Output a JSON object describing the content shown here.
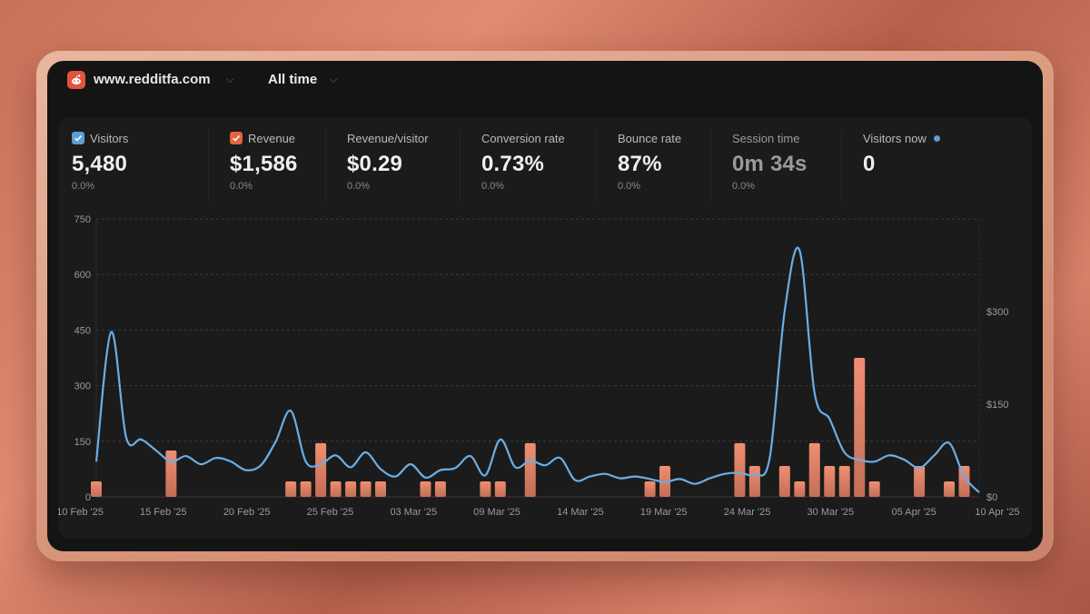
{
  "header": {
    "site_name": "www.redditfa.com",
    "period": "All time"
  },
  "metrics": [
    {
      "label": "Visitors",
      "value": "5,480",
      "change": "0.0%",
      "checkbox": "blue"
    },
    {
      "label": "Revenue",
      "value": "$1,586",
      "change": "0.0%",
      "checkbox": "orange"
    },
    {
      "label": "Revenue/visitor",
      "value": "$0.29",
      "change": "0.0%"
    },
    {
      "label": "Conversion rate",
      "value": "0.73%",
      "change": "0.0%"
    },
    {
      "label": "Bounce rate",
      "value": "87%",
      "change": "0.0%"
    },
    {
      "label": "Session time",
      "value": "0m 34s",
      "change": "0.0%"
    },
    {
      "label": "Visitors now",
      "value": "0",
      "change": ""
    }
  ],
  "colors": {
    "visitors_line": "#6aaee6",
    "revenue_bar": "#e07e62",
    "revenue_bar_top": "#f08f72"
  },
  "chart_data": {
    "type": "bar",
    "x_ticks": [
      "10 Feb '25",
      "15 Feb '25",
      "20 Feb '25",
      "25 Feb '25",
      "03 Mar '25",
      "09 Mar '25",
      "14 Mar '25",
      "19 Mar '25",
      "24 Mar '25",
      "30 Mar '25",
      "05 Apr '25",
      "10 Apr '25"
    ],
    "y_left": {
      "ticks": [
        0,
        150,
        300,
        450,
        600,
        750
      ],
      "range": [
        0,
        750
      ]
    },
    "y_right": {
      "ticks": [
        "$0",
        "$150",
        "$300"
      ],
      "range": [
        0,
        450
      ]
    },
    "series": [
      {
        "type": "line",
        "axis": "left",
        "points": [
          {
            "x": "2025-02-10",
            "y": 95
          },
          {
            "x": "2025-02-11",
            "y": 445
          },
          {
            "x": "2025-02-12",
            "y": 160
          },
          {
            "x": "2025-02-13",
            "y": 155
          },
          {
            "x": "2025-02-14",
            "y": 125
          },
          {
            "x": "2025-02-15",
            "y": 95
          },
          {
            "x": "2025-02-16",
            "y": 110
          },
          {
            "x": "2025-02-17",
            "y": 88
          },
          {
            "x": "2025-02-18",
            "y": 105
          },
          {
            "x": "2025-02-19",
            "y": 95
          },
          {
            "x": "2025-02-20",
            "y": 72
          },
          {
            "x": "2025-02-21",
            "y": 85
          },
          {
            "x": "2025-02-22",
            "y": 150
          },
          {
            "x": "2025-02-23",
            "y": 232
          },
          {
            "x": "2025-02-24",
            "y": 95
          },
          {
            "x": "2025-02-25",
            "y": 88
          },
          {
            "x": "2025-02-26",
            "y": 112
          },
          {
            "x": "2025-02-27",
            "y": 80
          },
          {
            "x": "2025-02-28",
            "y": 120
          },
          {
            "x": "2025-03-01",
            "y": 75
          },
          {
            "x": "2025-03-02",
            "y": 55
          },
          {
            "x": "2025-03-03",
            "y": 88
          },
          {
            "x": "2025-03-04",
            "y": 52
          },
          {
            "x": "2025-03-05",
            "y": 72
          },
          {
            "x": "2025-03-06",
            "y": 78
          },
          {
            "x": "2025-03-07",
            "y": 110
          },
          {
            "x": "2025-03-08",
            "y": 58
          },
          {
            "x": "2025-03-09",
            "y": 155
          },
          {
            "x": "2025-03-10",
            "y": 80
          },
          {
            "x": "2025-03-11",
            "y": 98
          },
          {
            "x": "2025-03-12",
            "y": 85
          },
          {
            "x": "2025-03-13",
            "y": 105
          },
          {
            "x": "2025-03-14",
            "y": 45
          },
          {
            "x": "2025-03-15",
            "y": 55
          },
          {
            "x": "2025-03-16",
            "y": 62
          },
          {
            "x": "2025-03-17",
            "y": 50
          },
          {
            "x": "2025-03-18",
            "y": 55
          },
          {
            "x": "2025-03-19",
            "y": 48
          },
          {
            "x": "2025-03-20",
            "y": 40
          },
          {
            "x": "2025-03-21",
            "y": 48
          },
          {
            "x": "2025-03-22",
            "y": 35
          },
          {
            "x": "2025-03-23",
            "y": 50
          },
          {
            "x": "2025-03-24",
            "y": 62
          },
          {
            "x": "2025-03-25",
            "y": 65
          },
          {
            "x": "2025-03-26",
            "y": 60
          },
          {
            "x": "2025-03-27",
            "y": 105
          },
          {
            "x": "2025-03-28",
            "y": 500
          },
          {
            "x": "2025-03-29",
            "y": 665
          },
          {
            "x": "2025-03-30",
            "y": 280
          },
          {
            "x": "2025-03-31",
            "y": 210
          },
          {
            "x": "2025-04-01",
            "y": 120
          },
          {
            "x": "2025-04-02",
            "y": 100
          },
          {
            "x": "2025-04-03",
            "y": 95
          },
          {
            "x": "2025-04-04",
            "y": 112
          },
          {
            "x": "2025-04-05",
            "y": 100
          },
          {
            "x": "2025-04-06",
            "y": 78
          },
          {
            "x": "2025-04-07",
            "y": 112
          },
          {
            "x": "2025-04-08",
            "y": 145
          },
          {
            "x": "2025-04-09",
            "y": 55
          },
          {
            "x": "2025-04-10",
            "y": 12
          }
        ]
      },
      {
        "type": "bar",
        "axis": "right",
        "points": [
          {
            "x": "2025-02-10",
            "y": 25
          },
          {
            "x": "2025-02-15",
            "y": 75
          },
          {
            "x": "2025-02-23",
            "y": 25
          },
          {
            "x": "2025-02-24",
            "y": 25
          },
          {
            "x": "2025-02-25",
            "y": 87
          },
          {
            "x": "2025-02-26",
            "y": 25
          },
          {
            "x": "2025-02-27",
            "y": 25
          },
          {
            "x": "2025-02-28",
            "y": 25
          },
          {
            "x": "2025-03-01",
            "y": 25
          },
          {
            "x": "2025-03-04",
            "y": 25
          },
          {
            "x": "2025-03-05",
            "y": 25
          },
          {
            "x": "2025-03-08",
            "y": 25
          },
          {
            "x": "2025-03-09",
            "y": 25
          },
          {
            "x": "2025-03-11",
            "y": 87
          },
          {
            "x": "2025-03-19",
            "y": 25
          },
          {
            "x": "2025-03-20",
            "y": 50
          },
          {
            "x": "2025-03-25",
            "y": 87
          },
          {
            "x": "2025-03-26",
            "y": 50
          },
          {
            "x": "2025-03-28",
            "y": 50
          },
          {
            "x": "2025-03-29",
            "y": 25
          },
          {
            "x": "2025-03-30",
            "y": 87
          },
          {
            "x": "2025-03-31",
            "y": 50
          },
          {
            "x": "2025-04-01",
            "y": 50
          },
          {
            "x": "2025-04-02",
            "y": 225
          },
          {
            "x": "2025-04-03",
            "y": 25
          },
          {
            "x": "2025-04-06",
            "y": 50
          },
          {
            "x": "2025-04-08",
            "y": 25
          },
          {
            "x": "2025-04-09",
            "y": 50
          }
        ]
      }
    ],
    "grid": true
  }
}
